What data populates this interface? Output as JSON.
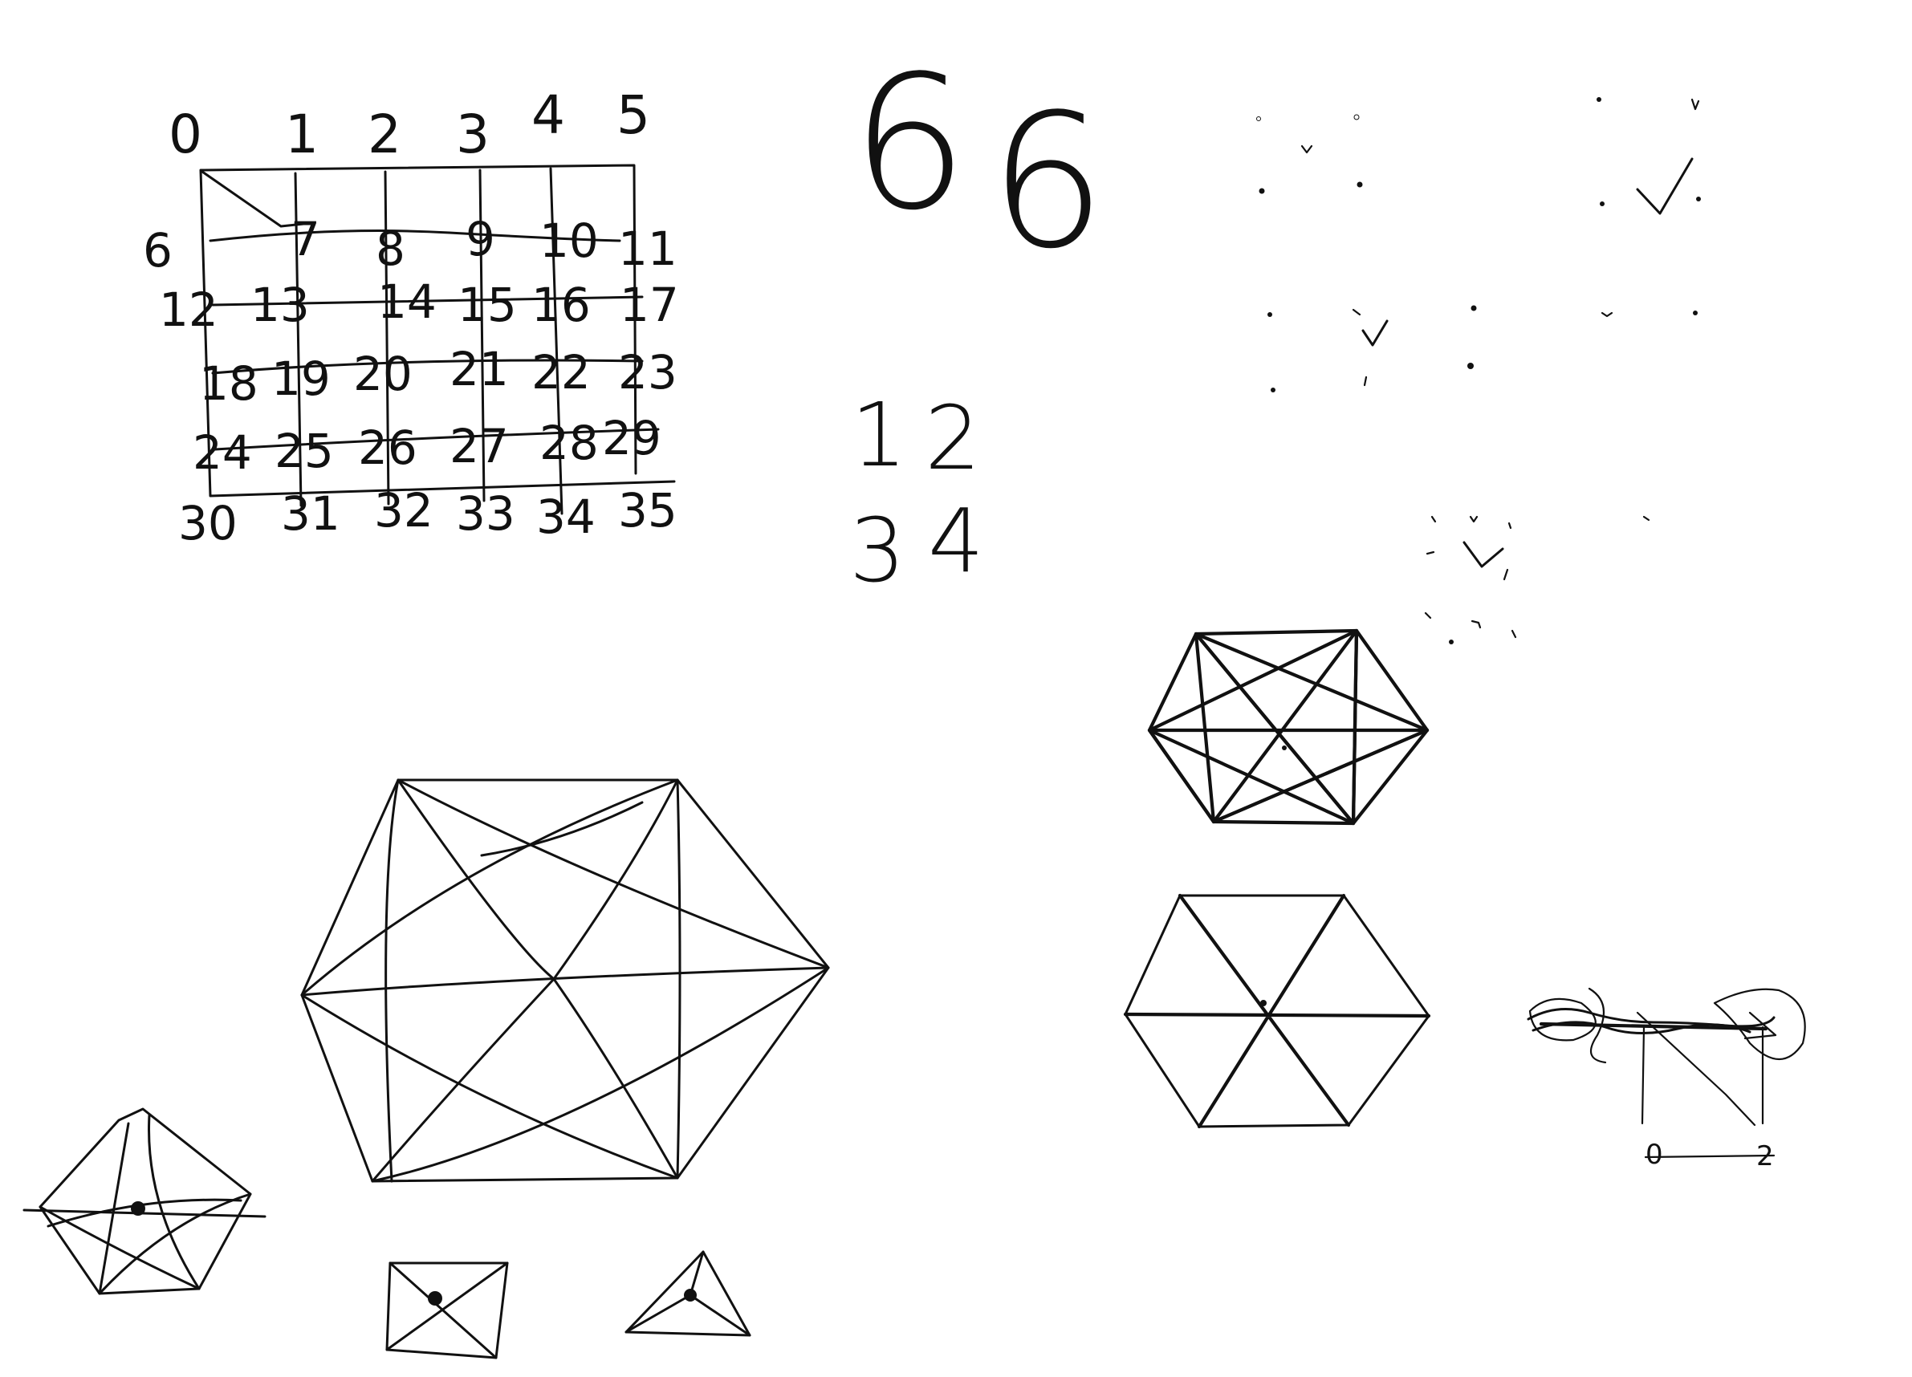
{
  "colors": {
    "canvas": "#ffffff",
    "ink": "#111111"
  },
  "number_grid": {
    "column_labels": [
      "0",
      "1",
      "2",
      "3",
      "4",
      "5"
    ],
    "rows": [
      [
        "6",
        "7",
        "8",
        "9",
        "10",
        "11"
      ],
      [
        "12",
        "13",
        "14",
        "15",
        "16",
        "17"
      ],
      [
        "18",
        "19",
        "20",
        "21",
        "22",
        "23"
      ],
      [
        "24",
        "25",
        "26",
        "27",
        "28",
        "29"
      ],
      [
        "30",
        "31",
        "32",
        "33",
        "34",
        "35"
      ]
    ]
  },
  "big_digits": [
    "6",
    "6"
  ],
  "small_grid_digits": [
    "1",
    "2",
    "3",
    "4"
  ],
  "tick_groups": [
    "ticks-top-left",
    "ticks-top-right",
    "ticks-middle",
    "ticks-lower"
  ],
  "diagram_labels": [
    "0",
    "2"
  ]
}
